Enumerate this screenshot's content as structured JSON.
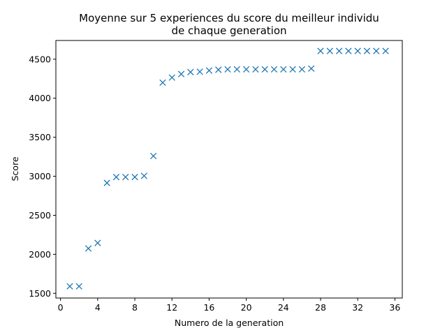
{
  "chart_data": {
    "type": "scatter",
    "title": [
      "Moyenne sur 5 experiences du score du meilleur individu",
      "de chaque generation"
    ],
    "xlabel": "Numero de la generation",
    "ylabel": "Score",
    "xlim": [
      -0.5,
      36.8
    ],
    "ylim": [
      1440,
      4740
    ],
    "xticks": [
      0,
      4,
      8,
      12,
      16,
      20,
      24,
      28,
      32,
      36
    ],
    "yticks": [
      1500,
      2000,
      2500,
      3000,
      3500,
      4000,
      4500
    ],
    "marker": "x",
    "grid": false,
    "color": "#1f77b4",
    "series": [
      {
        "x": [
          1,
          2,
          3,
          4,
          5,
          6,
          7,
          8,
          9,
          10,
          11,
          12,
          13,
          14,
          15,
          16,
          17,
          18,
          19,
          20,
          21,
          22,
          23,
          24,
          25,
          26,
          27,
          28,
          29,
          30,
          31,
          32,
          33,
          34,
          35
        ],
        "values": [
          1590,
          1590,
          2075,
          2145,
          2915,
          2990,
          2990,
          2990,
          3005,
          3260,
          4200,
          4265,
          4310,
          4335,
          4340,
          4355,
          4365,
          4370,
          4370,
          4370,
          4370,
          4370,
          4370,
          4370,
          4370,
          4370,
          4380,
          4605,
          4605,
          4605,
          4605,
          4605,
          4605,
          4605,
          4605
        ]
      }
    ]
  }
}
